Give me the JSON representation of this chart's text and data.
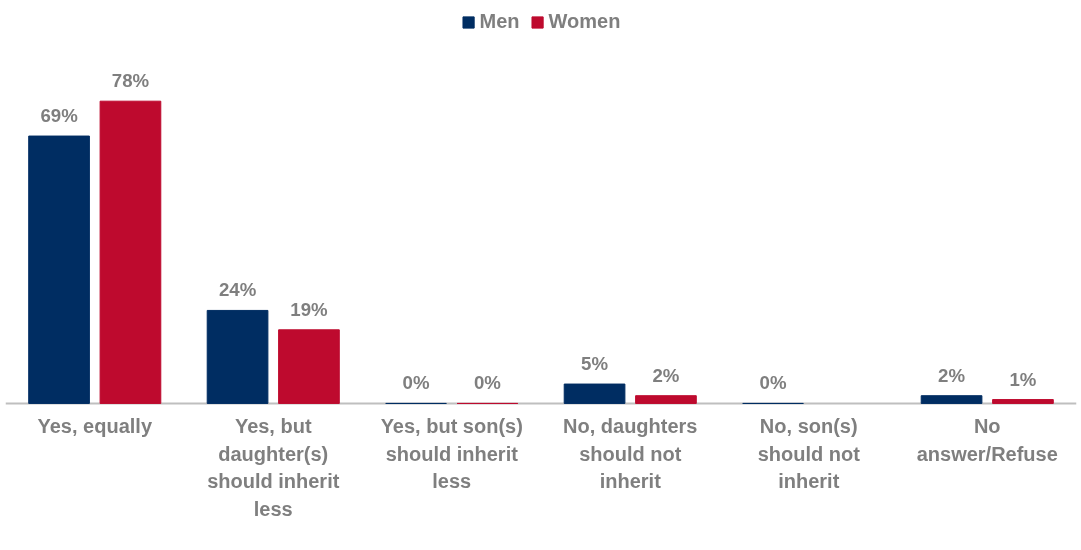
{
  "chart_data": {
    "type": "bar",
    "categories": [
      "Yes, equally",
      "Yes, but daughter(s) should inherit less",
      "Yes, but son(s) should inherit less",
      "No, daughters should not inherit",
      "No, son(s) should not inherit",
      "No answer/Refuse"
    ],
    "series": [
      {
        "name": "Men",
        "color": "#002d62",
        "values": [
          69,
          24,
          0,
          5,
          0,
          2
        ],
        "value_labels": [
          "69%",
          "24%",
          "0%",
          "5%",
          "0%",
          "2%"
        ]
      },
      {
        "name": "Women",
        "color": "#be0a2e",
        "values": [
          78,
          19,
          0,
          2,
          null,
          1
        ],
        "value_labels": [
          "78%",
          "19%",
          "0%",
          "2%",
          null,
          "1%"
        ]
      }
    ],
    "legend": "top"
  }
}
